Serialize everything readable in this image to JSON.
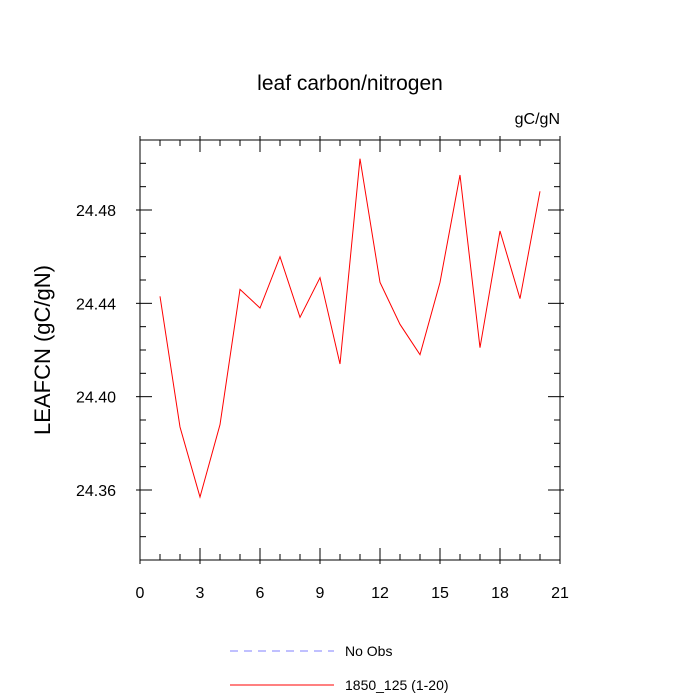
{
  "chart_data": {
    "type": "line",
    "title": "leaf carbon/nitrogen",
    "units_label": "gC/gN",
    "ylabel": "LEAFCN  (gC/gN)",
    "xlabel": "",
    "xlim": [
      0,
      21
    ],
    "ylim": [
      24.33,
      24.51
    ],
    "x_ticks": [
      0,
      3,
      6,
      9,
      12,
      15,
      18,
      21
    ],
    "y_ticks": [
      24.36,
      24.4,
      24.44,
      24.48
    ],
    "x_tick_labels": [
      "0",
      "3",
      "6",
      "9",
      "12",
      "15",
      "18",
      "21"
    ],
    "y_tick_labels": [
      "24.36",
      "24.40",
      "24.44",
      "24.48"
    ],
    "grid": false,
    "legend_position": "bottom",
    "series": [
      {
        "name": "No Obs",
        "color": "#8080ff",
        "style": "dashed",
        "x": [],
        "y": []
      },
      {
        "name": "1850_125 (1-20)",
        "color": "#ff0000",
        "style": "solid",
        "x": [
          1,
          2,
          3,
          4,
          5,
          6,
          7,
          8,
          9,
          10,
          11,
          12,
          13,
          14,
          15,
          16,
          17,
          18,
          19,
          20
        ],
        "y": [
          24.443,
          24.387,
          24.357,
          24.388,
          24.446,
          24.438,
          24.46,
          24.434,
          24.451,
          24.414,
          24.502,
          24.449,
          24.431,
          24.418,
          24.449,
          24.495,
          24.421,
          24.471,
          24.442,
          24.488
        ]
      }
    ]
  }
}
